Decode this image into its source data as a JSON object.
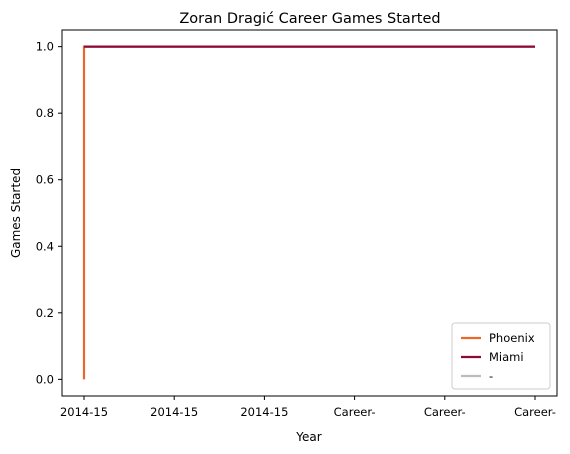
{
  "chart_data": {
    "type": "line",
    "title": "Zoran Dragić Career Games Started",
    "xlabel": "Year",
    "ylabel": "Games Started",
    "x_tick_labels": [
      "2014-15",
      "2014-15",
      "2014-15",
      "Career-",
      "Career-",
      "Career-"
    ],
    "ylim": [
      -0.05,
      1.05
    ],
    "y_ticks": [
      0.0,
      0.2,
      0.4,
      0.6,
      0.8,
      1.0
    ],
    "y_tick_labels": [
      "0.0",
      "0.2",
      "0.4",
      "0.6",
      "0.8",
      "1.0"
    ],
    "grid": false,
    "legend_position": "lower-right",
    "series": [
      {
        "name": "Phoenix",
        "color": "#e8692a",
        "x": [
          0,
          0,
          5
        ],
        "y": [
          0,
          1,
          1
        ]
      },
      {
        "name": "Miami",
        "color": "#8b0a3a",
        "x": [
          0,
          5
        ],
        "y": [
          1,
          1
        ]
      },
      {
        "name": "-",
        "color": "#bdbdbd",
        "x": [],
        "y": []
      }
    ]
  }
}
